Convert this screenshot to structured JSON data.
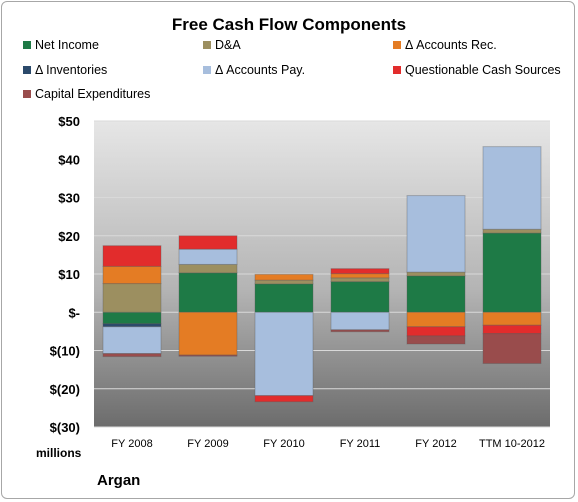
{
  "chart_data": {
    "type": "bar",
    "stacked": true,
    "title": "Free Cash Flow Components",
    "categories": [
      "FY 2008",
      "FY 2009",
      "FY 2010",
      "FY 2011",
      "FY 2012",
      "TTM 10-2012"
    ],
    "ylim": [
      -30,
      50
    ],
    "yticks": [
      -30,
      -20,
      -10,
      0,
      10,
      20,
      30,
      40,
      50
    ],
    "ytick_labels": [
      "$(30)",
      "$(20)",
      "$(10)",
      "$-",
      "$10",
      "$20",
      "$30",
      "$40",
      "$50"
    ],
    "ylabel": "millions",
    "legend_position": "top",
    "series": [
      {
        "name": "Net Income",
        "color": "#1e7a46",
        "values": [
          -3,
          10.3,
          7.4,
          8,
          9.5,
          20.7
        ]
      },
      {
        "name": "D&A",
        "color": "#9c8f60",
        "values": [
          7.5,
          2.2,
          1,
          1,
          1,
          1
        ]
      },
      {
        "name": "Δ Accounts Rec.",
        "color": "#e47c24",
        "values": [
          4.5,
          -11.2,
          1.5,
          1.1,
          -3.8,
          -3.4
        ]
      },
      {
        "name": "Δ Inventories",
        "color": "#2b4a6b",
        "values": [
          -0.8,
          0,
          0,
          0,
          0,
          0
        ]
      },
      {
        "name": "Δ Accounts Pay.",
        "color": "#a7bedd",
        "values": [
          -7,
          4,
          -21.8,
          -4.6,
          20,
          21.6
        ]
      },
      {
        "name": "Questionable Cash Sources",
        "color": "#e22c2c",
        "values": [
          5.4,
          3.5,
          -1.6,
          1.3,
          -2.4,
          -2.2
        ]
      },
      {
        "name": "Capital Expenditures",
        "color": "#994c4c",
        "values": [
          -0.8,
          -0.3,
          0,
          -0.5,
          -2.1,
          -7.8
        ]
      }
    ]
  },
  "brand": "Argan",
  "colors": {
    "plot_top": "#e4e4e4",
    "plot_bottom": "#6f6f6f",
    "grid": "#d8d8d8"
  }
}
